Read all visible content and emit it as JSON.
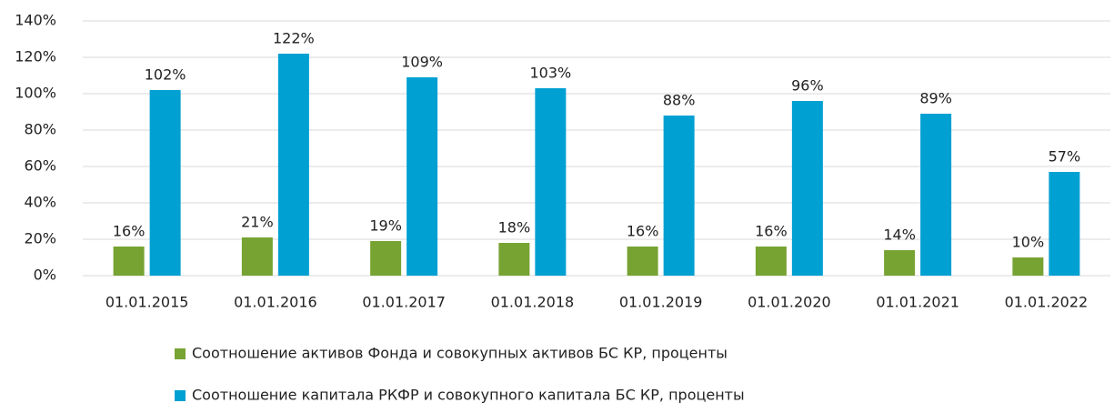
{
  "chart_data": {
    "type": "bar",
    "categories": [
      "01.01.2015",
      "01.01.2016",
      "01.01.2017",
      "01.01.2018",
      "01.01.2019",
      "01.01.2020",
      "01.01.2021",
      "01.01.2022"
    ],
    "series": [
      {
        "name": "Соотношение активов Фонда и совокупных активов БС КР, проценты",
        "color": "#77a333",
        "values": [
          16,
          21,
          19,
          18,
          16,
          16,
          14,
          10
        ],
        "value_labels": [
          "16%",
          "21%",
          "19%",
          "18%",
          "16%",
          "16%",
          "14%",
          "10%"
        ]
      },
      {
        "name": "Соотношение капитала РКФР и совокупного капитала БС КР, проценты",
        "color": "#00a0d2",
        "values": [
          102,
          122,
          109,
          103,
          88,
          96,
          89,
          57
        ],
        "value_labels": [
          "102%",
          "122%",
          "109%",
          "103%",
          "88%",
          "96%",
          "89%",
          "57%"
        ]
      }
    ],
    "ylim": [
      0,
      140
    ],
    "yticks": [
      {
        "value": 0,
        "label": "0%"
      },
      {
        "value": 20,
        "label": "20%"
      },
      {
        "value": 40,
        "label": "40%"
      },
      {
        "value": 60,
        "label": "60%"
      },
      {
        "value": 80,
        "label": "80%"
      },
      {
        "value": 100,
        "label": "100%"
      },
      {
        "value": 120,
        "label": "120%"
      },
      {
        "value": 140,
        "label": "140%"
      }
    ],
    "grid": true,
    "legend": "bottom"
  }
}
